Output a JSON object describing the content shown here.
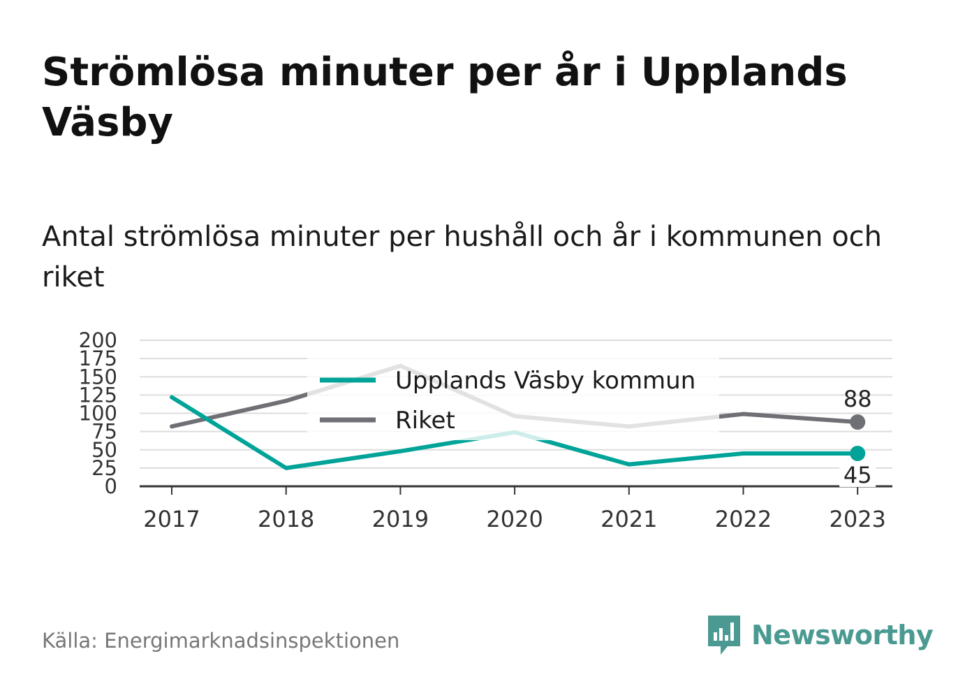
{
  "header": {
    "title": "Strömlösa minuter per år i Upplands Väsby",
    "subtitle": "Antal strömlösa minuter per hushåll och år i kommunen och riket"
  },
  "footer": {
    "source": "Källa: Energimarknadsinspektionen",
    "brand": "Newsworthy",
    "brand_icon": "newsworthy-logo-icon"
  },
  "colors": {
    "kommun": "#00a398",
    "riket": "#6f6f76",
    "grid": "#dddddd",
    "axis": "#333333",
    "brand": "#4a9a92"
  },
  "chart_data": {
    "type": "line",
    "x": [
      "2017",
      "2018",
      "2019",
      "2020",
      "2021",
      "2022",
      "2023"
    ],
    "ylim": [
      0,
      200
    ],
    "yticks": [
      "0",
      "25",
      "50",
      "75",
      "100",
      "125",
      "150",
      "175",
      "200"
    ],
    "grid": true,
    "legend_position": "top-center",
    "series": [
      {
        "name": "Upplands Väsby kommun",
        "values": [
          122,
          25,
          48,
          74,
          30,
          45,
          45
        ],
        "end_label": "45"
      },
      {
        "name": "Riket",
        "values": [
          82,
          117,
          165,
          96,
          82,
          99,
          88
        ],
        "end_label": "88"
      }
    ]
  }
}
